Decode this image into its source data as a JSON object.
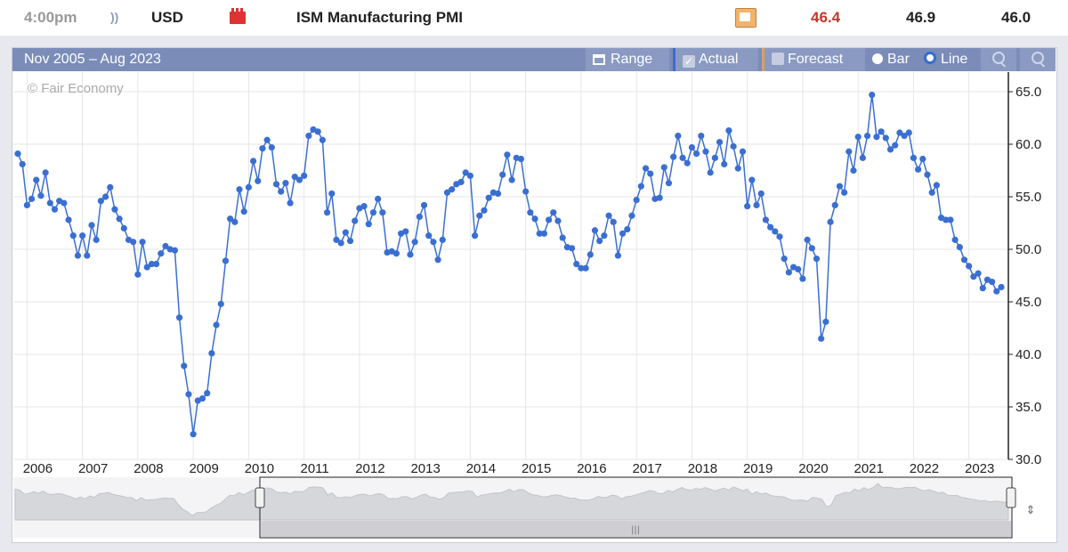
{
  "topbar": {
    "time": "4:00pm",
    "currency": "USD",
    "event": "ISM Manufacturing PMI",
    "actual": "46.4",
    "forecast": "46.9",
    "previous": "46.0",
    "actual_color": "#c0392b",
    "impact": "high-impact-folder-icon",
    "sound_icon": "sound-icon",
    "detail_icon": "detail-icon"
  },
  "toolbar": {
    "range_text": "Nov 2005 – Aug 2023",
    "range_button": "Range",
    "actual_label": "Actual",
    "forecast_label": "Forecast",
    "bar_label": "Bar",
    "line_label": "Line"
  },
  "watermark": "© Fair Economy",
  "colors": {
    "line": "#3a6fd1",
    "grid": "#e4e4e4",
    "toolbar": "#7b8cb8"
  },
  "chart_data": {
    "type": "line",
    "title": "",
    "xlabel": "",
    "ylabel": "",
    "ylim": [
      30,
      65
    ],
    "y_ticks": [
      "30.0",
      "35.0",
      "40.0",
      "45.0",
      "50.0",
      "55.0",
      "60.0",
      "65.0"
    ],
    "x_ticks": [
      "2006",
      "2007",
      "2008",
      "2009",
      "2010",
      "2011",
      "2012",
      "2013",
      "2014",
      "2015",
      "2016",
      "2017",
      "2018",
      "2019",
      "2020",
      "2021",
      "2022",
      "2023"
    ],
    "x_start": "2005-11",
    "x_end": "2023-08",
    "grid": true,
    "legend": "none",
    "series": [
      {
        "values": [
          59.1,
          58.1,
          54.2,
          54.8,
          56.6,
          55.1,
          57.3,
          54.4,
          53.8,
          54.6,
          54.4,
          52.8,
          51.3,
          49.4,
          51.3,
          49.4,
          52.3,
          50.9,
          54.6,
          55.0,
          55.9,
          53.8,
          52.9,
          52.0,
          50.9,
          50.7,
          47.6,
          50.7,
          48.3,
          48.6,
          48.6,
          49.6,
          50.3,
          50.0,
          49.9,
          43.5,
          38.9,
          36.2,
          32.4,
          35.6,
          35.8,
          36.3,
          40.1,
          42.8,
          44.8,
          48.9,
          52.9,
          52.6,
          55.7,
          53.6,
          55.9,
          58.4,
          56.5,
          59.6,
          60.4,
          59.7,
          56.2,
          55.5,
          56.3,
          54.4,
          56.9,
          56.6,
          57.0,
          60.8,
          61.4,
          61.2,
          60.4,
          53.5,
          55.3,
          50.9,
          50.6,
          51.6,
          50.8,
          52.7,
          53.9,
          54.1,
          52.4,
          53.5,
          54.8,
          53.5,
          49.7,
          49.8,
          49.6,
          51.5,
          51.7,
          49.5,
          50.7,
          53.1,
          54.2,
          51.3,
          50.7,
          49.0,
          50.9,
          55.4,
          55.7,
          56.2,
          56.4,
          57.3,
          57.0,
          51.3,
          53.2,
          53.7,
          54.9,
          55.4,
          55.3,
          57.1,
          59.0,
          56.6,
          58.7,
          58.6,
          55.5,
          53.5,
          52.9,
          51.5,
          51.5,
          52.8,
          53.5,
          52.7,
          51.1,
          50.2,
          50.1,
          48.6,
          48.2,
          48.2,
          49.5,
          51.8,
          50.8,
          51.3,
          53.2,
          52.6,
          49.4,
          51.5,
          51.9,
          53.2,
          54.7,
          56.0,
          57.7,
          57.2,
          54.8,
          54.9,
          57.8,
          56.3,
          58.8,
          60.8,
          58.7,
          58.2,
          59.7,
          59.1,
          60.8,
          59.3,
          57.3,
          58.7,
          60.2,
          58.1,
          61.3,
          59.8,
          57.7,
          59.3,
          54.1,
          56.6,
          54.2,
          55.3,
          52.8,
          52.1,
          51.7,
          51.2,
          49.1,
          47.8,
          48.3,
          48.1,
          47.2,
          50.9,
          50.1,
          49.1,
          41.5,
          43.1,
          52.6,
          54.2,
          56.0,
          55.4,
          59.3,
          57.5,
          60.7,
          58.7,
          60.8,
          64.7,
          60.7,
          61.2,
          60.6,
          59.5,
          59.9,
          61.1,
          60.8,
          61.1,
          58.7,
          57.6,
          58.6,
          57.1,
          55.4,
          56.1,
          53.0,
          52.8,
          52.8,
          50.9,
          50.2,
          49.0,
          48.4,
          47.4,
          47.7,
          46.3,
          47.1,
          46.9,
          46.0,
          46.4
        ]
      }
    ]
  }
}
